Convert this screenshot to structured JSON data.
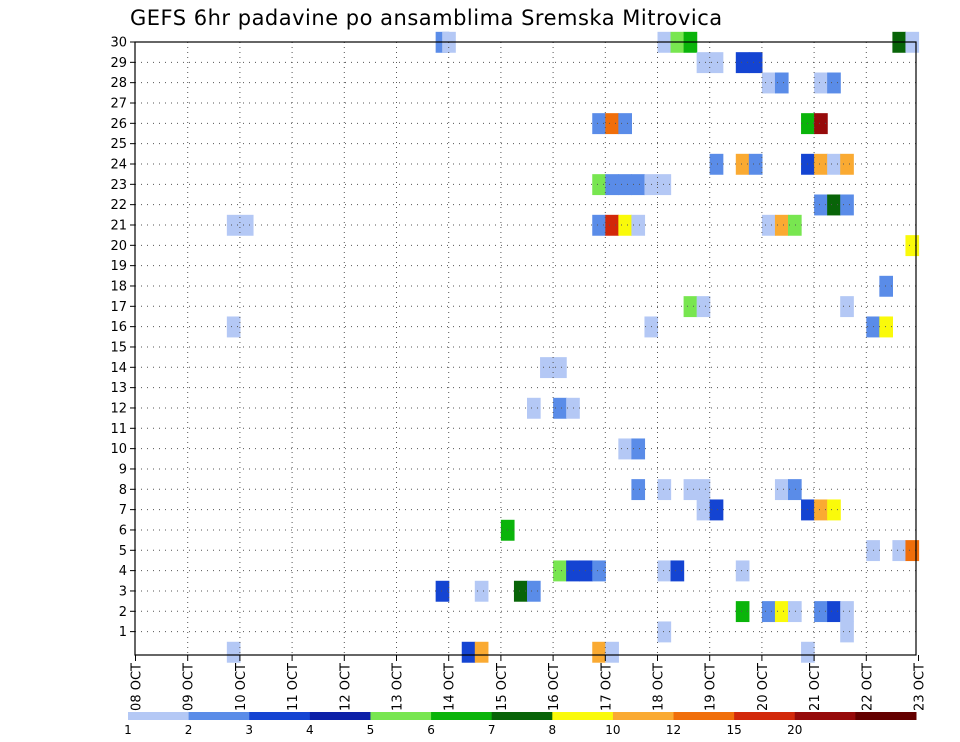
{
  "chart_data": {
    "type": "heatmap",
    "title": "GEFS 6hr padavine po ansamblima Sremska Mitrovica",
    "xlabel": "",
    "ylabel": "",
    "y_ticks": [
      "1",
      "2",
      "3",
      "4",
      "5",
      "6",
      "7",
      "8",
      "9",
      "10",
      "11",
      "12",
      "13",
      "14",
      "15",
      "16",
      "17",
      "18",
      "19",
      "20",
      "21",
      "22",
      "23",
      "24",
      "25",
      "26",
      "27",
      "28",
      "29",
      "30"
    ],
    "x_ticks": [
      "08 OCT",
      "09 OCT",
      "10 OCT",
      "11 OCT",
      "12 OCT",
      "13 OCT",
      "14 OCT",
      "15 OCT",
      "16 OCT",
      "17 OCT",
      "18 OCT",
      "19 OCT",
      "20 OCT",
      "21 OCT",
      "22 OCT",
      "23 OCT"
    ],
    "x_range_days": [
      0,
      15
    ],
    "step_days": 0.25,
    "y_range": [
      0,
      30
    ],
    "grid": true,
    "legend": {
      "position": "bottom",
      "labels": [
        "1",
        "2",
        "3",
        "4",
        "5",
        "6",
        "7",
        "8",
        "10",
        "12",
        "15",
        "20"
      ],
      "colors": [
        "#b4c8f5",
        "#5a8ce8",
        "#1444d2",
        "#0c20a8",
        "#78e650",
        "#0ab40a",
        "#086408",
        "#fafa0a",
        "#faaa32",
        "#f06e0a",
        "#d2280a",
        "#960a0a",
        "#640000"
      ]
    },
    "cells": [
      {
        "m": 30,
        "d": 5.875,
        "c": 1
      },
      {
        "m": 30,
        "d": 6,
        "c": 0
      },
      {
        "m": 30,
        "d": 10.125,
        "c": 0
      },
      {
        "m": 30,
        "d": 10.375,
        "c": 4
      },
      {
        "m": 30,
        "d": 10.625,
        "c": 5
      },
      {
        "m": 30,
        "d": 14.625,
        "c": 6
      },
      {
        "m": 30,
        "d": 14.875,
        "c": 0
      },
      {
        "m": 29,
        "d": 10.875,
        "c": 0
      },
      {
        "m": 29,
        "d": 11.125,
        "c": 0
      },
      {
        "m": 29,
        "d": 11.625,
        "c": 2
      },
      {
        "m": 29,
        "d": 11.875,
        "c": 2
      },
      {
        "m": 28,
        "d": 12.125,
        "c": 0
      },
      {
        "m": 28,
        "d": 12.375,
        "c": 1
      },
      {
        "m": 28,
        "d": 13.125,
        "c": 0
      },
      {
        "m": 28,
        "d": 13.375,
        "c": 1
      },
      {
        "m": 26,
        "d": 8.875,
        "c": 1
      },
      {
        "m": 26,
        "d": 9.125,
        "c": 9
      },
      {
        "m": 26,
        "d": 9.375,
        "c": 1
      },
      {
        "m": 26,
        "d": 12.875,
        "c": 5
      },
      {
        "m": 26,
        "d": 13.125,
        "c": 11
      },
      {
        "m": 24,
        "d": 11.125,
        "c": 1
      },
      {
        "m": 24,
        "d": 11.625,
        "c": 8
      },
      {
        "m": 24,
        "d": 11.875,
        "c": 1
      },
      {
        "m": 24,
        "d": 12.875,
        "c": 2
      },
      {
        "m": 24,
        "d": 13.125,
        "c": 8
      },
      {
        "m": 24,
        "d": 13.375,
        "c": 0
      },
      {
        "m": 24,
        "d": 13.625,
        "c": 8
      },
      {
        "m": 23,
        "d": 8.875,
        "c": 4
      },
      {
        "m": 23,
        "d": 9.125,
        "c": 1
      },
      {
        "m": 23,
        "d": 9.375,
        "c": 1
      },
      {
        "m": 23,
        "d": 9.625,
        "c": 1
      },
      {
        "m": 23,
        "d": 9.875,
        "c": 0
      },
      {
        "m": 23,
        "d": 10.125,
        "c": 0
      },
      {
        "m": 22,
        "d": 13.125,
        "c": 1
      },
      {
        "m": 22,
        "d": 13.375,
        "c": 6
      },
      {
        "m": 22,
        "d": 13.625,
        "c": 1
      },
      {
        "m": 21,
        "d": 1.875,
        "c": 0
      },
      {
        "m": 21,
        "d": 2.125,
        "c": 0
      },
      {
        "m": 21,
        "d": 8.875,
        "c": 1
      },
      {
        "m": 21,
        "d": 9.125,
        "c": 10
      },
      {
        "m": 21,
        "d": 9.375,
        "c": 7
      },
      {
        "m": 21,
        "d": 9.625,
        "c": 0
      },
      {
        "m": 21,
        "d": 12.125,
        "c": 0
      },
      {
        "m": 21,
        "d": 12.375,
        "c": 8
      },
      {
        "m": 21,
        "d": 12.625,
        "c": 4
      },
      {
        "m": 20,
        "d": 14.875,
        "c": 7
      },
      {
        "m": 18,
        "d": 14.375,
        "c": 1
      },
      {
        "m": 17,
        "d": 10.625,
        "c": 4
      },
      {
        "m": 17,
        "d": 10.875,
        "c": 0
      },
      {
        "m": 17,
        "d": 13.625,
        "c": 0
      },
      {
        "m": 16,
        "d": 1.875,
        "c": 0
      },
      {
        "m": 16,
        "d": 9.875,
        "c": 0
      },
      {
        "m": 16,
        "d": 14.125,
        "c": 1
      },
      {
        "m": 16,
        "d": 14.375,
        "c": 7
      },
      {
        "m": 14,
        "d": 7.875,
        "c": 0
      },
      {
        "m": 14,
        "d": 8.125,
        "c": 0
      },
      {
        "m": 12,
        "d": 7.625,
        "c": 0
      },
      {
        "m": 12,
        "d": 8.125,
        "c": 1
      },
      {
        "m": 12,
        "d": 8.375,
        "c": 0
      },
      {
        "m": 10,
        "d": 9.375,
        "c": 0
      },
      {
        "m": 10,
        "d": 9.625,
        "c": 1
      },
      {
        "m": 8,
        "d": 9.625,
        "c": 1
      },
      {
        "m": 8,
        "d": 10.125,
        "c": 0
      },
      {
        "m": 8,
        "d": 10.625,
        "c": 0
      },
      {
        "m": 8,
        "d": 10.875,
        "c": 0
      },
      {
        "m": 8,
        "d": 12.375,
        "c": 0
      },
      {
        "m": 8,
        "d": 12.625,
        "c": 1
      },
      {
        "m": 7,
        "d": 10.875,
        "c": 0
      },
      {
        "m": 7,
        "d": 11.125,
        "c": 2
      },
      {
        "m": 7,
        "d": 12.875,
        "c": 2
      },
      {
        "m": 7,
        "d": 13.125,
        "c": 8
      },
      {
        "m": 7,
        "d": 13.375,
        "c": 7
      },
      {
        "m": 6,
        "d": 7.125,
        "c": 5
      },
      {
        "m": 5,
        "d": 14.125,
        "c": 0
      },
      {
        "m": 5,
        "d": 14.625,
        "c": 0
      },
      {
        "m": 5,
        "d": 14.875,
        "c": 9
      },
      {
        "m": 4,
        "d": 8.125,
        "c": 4
      },
      {
        "m": 4,
        "d": 8.375,
        "c": 2
      },
      {
        "m": 4,
        "d": 8.625,
        "c": 2
      },
      {
        "m": 4,
        "d": 8.875,
        "c": 1
      },
      {
        "m": 4,
        "d": 10.125,
        "c": 0
      },
      {
        "m": 4,
        "d": 10.375,
        "c": 2
      },
      {
        "m": 4,
        "d": 11.625,
        "c": 0
      },
      {
        "m": 3,
        "d": 5.875,
        "c": 2
      },
      {
        "m": 3,
        "d": 6.625,
        "c": 0
      },
      {
        "m": 3,
        "d": 7.375,
        "c": 6
      },
      {
        "m": 3,
        "d": 7.625,
        "c": 1
      },
      {
        "m": 2,
        "d": 11.625,
        "c": 5
      },
      {
        "m": 2,
        "d": 12.125,
        "c": 1
      },
      {
        "m": 2,
        "d": 12.375,
        "c": 7
      },
      {
        "m": 2,
        "d": 12.625,
        "c": 0
      },
      {
        "m": 2,
        "d": 13.125,
        "c": 1
      },
      {
        "m": 2,
        "d": 13.375,
        "c": 2
      },
      {
        "m": 2,
        "d": 13.625,
        "c": 0
      },
      {
        "m": 1,
        "d": 10.125,
        "c": 0
      },
      {
        "m": 1,
        "d": 13.625,
        "c": 0
      },
      {
        "m": 0,
        "d": 1.875,
        "c": 0
      },
      {
        "m": 0,
        "d": 6.375,
        "c": 2
      },
      {
        "m": 0,
        "d": 6.625,
        "c": 8
      },
      {
        "m": 0,
        "d": 8.875,
        "c": 8
      },
      {
        "m": 0,
        "d": 9.125,
        "c": 0
      },
      {
        "m": 0,
        "d": 12.875,
        "c": 0
      }
    ]
  }
}
